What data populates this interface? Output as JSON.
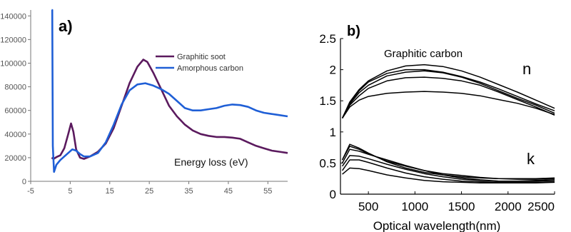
{
  "figure": {
    "panel_a_label": "a)",
    "panel_b_label": "b)"
  },
  "chart_data": [
    {
      "type": "line",
      "panel": "a)",
      "xlabel_annotation": "Energy loss (eV)",
      "legend_position": "top-right",
      "xlim": [
        -5,
        60
      ],
      "ylim": [
        0,
        145000
      ],
      "xticks": [
        -5,
        5,
        15,
        25,
        35,
        45,
        55
      ],
      "yticks": [
        0,
        20000,
        40000,
        60000,
        80000,
        100000,
        120000,
        140000
      ],
      "xtick_labels": [
        "-5",
        "5",
        "15",
        "25",
        "35",
        "45",
        "55"
      ],
      "ytick_labels": [
        "0",
        "20000",
        "40000",
        "60000",
        "80000",
        "100000",
        "120000",
        "140000"
      ],
      "series": [
        {
          "name": "Graphitic soot",
          "color": "#5b1a5e",
          "x": [
            0.3,
            0.8,
            1.5,
            2.5,
            3.5,
            4.5,
            5.2,
            5.8,
            6.5,
            7.5,
            8.5,
            10,
            12,
            14,
            16,
            18,
            20,
            22,
            23.5,
            24.5,
            26,
            28,
            30,
            32,
            34,
            36,
            38,
            40,
            42,
            44,
            46,
            48,
            50,
            52,
            54,
            56,
            58,
            60
          ],
          "y": [
            20000,
            19000,
            20500,
            22000,
            28000,
            40000,
            49000,
            42000,
            27000,
            20000,
            19000,
            21000,
            25000,
            32000,
            45000,
            64000,
            83000,
            97000,
            103000,
            101000,
            92000,
            78000,
            64000,
            55000,
            48000,
            43000,
            40000,
            38500,
            37500,
            37500,
            37000,
            36000,
            33000,
            30000,
            28000,
            26000,
            25000,
            24000
          ]
        },
        {
          "name": "Amorphous carbon",
          "color": "#1f5fd6",
          "x": [
            0.3,
            0.45,
            0.6,
            0.9,
            1.5,
            2.5,
            3.5,
            4.5,
            5.5,
            6.5,
            7.5,
            8.5,
            10,
            12,
            14,
            16,
            18,
            20,
            22,
            24,
            26,
            28,
            30,
            32,
            34,
            36,
            38,
            40,
            42,
            44,
            46,
            48,
            50,
            52,
            54,
            56,
            58,
            60
          ],
          "y": [
            145000,
            145000,
            30000,
            8000,
            14000,
            18000,
            21000,
            24000,
            27000,
            26000,
            23000,
            21000,
            21000,
            24000,
            33000,
            48000,
            65000,
            77000,
            82000,
            83000,
            81000,
            78000,
            74000,
            68000,
            62000,
            60000,
            60000,
            61000,
            62000,
            64000,
            65000,
            64500,
            63000,
            60000,
            58000,
            57000,
            56000,
            55000
          ]
        }
      ]
    },
    {
      "type": "line",
      "panel": "b)",
      "title": "Graphitic carbon",
      "xlabel": "Optical wavelength(nm)",
      "xlim": [
        200,
        2500
      ],
      "ylim": [
        0,
        2.5
      ],
      "xticks": [
        500,
        1000,
        1500,
        2000,
        2500
      ],
      "yticks": [
        0,
        0.5,
        1,
        1.5,
        2,
        2.5
      ],
      "xtick_labels": [
        "500",
        "1000",
        "1500",
        "2000",
        "2500"
      ],
      "ytick_labels": [
        "0",
        "0.5",
        "1",
        "1.5",
        "2",
        "2.5"
      ],
      "annotations": [
        "n",
        "k"
      ],
      "x": [
        220,
        300,
        400,
        500,
        700,
        900,
        1100,
        1300,
        1500,
        1700,
        1900,
        2100,
        2300,
        2500
      ],
      "series": [
        {
          "color": "#000000",
          "values": [
            1.22,
            1.48,
            1.68,
            1.82,
            1.98,
            2.06,
            2.08,
            2.05,
            1.98,
            1.88,
            1.76,
            1.64,
            1.51,
            1.38
          ]
        },
        {
          "color": "#000000",
          "values": [
            1.22,
            1.47,
            1.66,
            1.8,
            1.94,
            2.0,
            2.0,
            1.96,
            1.89,
            1.8,
            1.69,
            1.57,
            1.45,
            1.34
          ]
        },
        {
          "color": "#000000",
          "values": [
            1.22,
            1.45,
            1.63,
            1.75,
            1.9,
            1.96,
            1.98,
            1.95,
            1.88,
            1.78,
            1.66,
            1.54,
            1.43,
            1.3
          ]
        },
        {
          "color": "#000000",
          "values": [
            1.22,
            1.43,
            1.58,
            1.7,
            1.82,
            1.87,
            1.88,
            1.86,
            1.82,
            1.75,
            1.64,
            1.52,
            1.4,
            1.27
          ]
        },
        {
          "color": "#000000",
          "values": [
            1.22,
            1.4,
            1.51,
            1.57,
            1.62,
            1.64,
            1.65,
            1.64,
            1.62,
            1.58,
            1.52,
            1.46,
            1.38,
            1.28
          ]
        },
        {
          "color": "#000000",
          "values": [
            0.55,
            0.8,
            0.74,
            0.66,
            0.52,
            0.42,
            0.35,
            0.31,
            0.28,
            0.26,
            0.25,
            0.25,
            0.25,
            0.26
          ]
        },
        {
          "color": "#000000",
          "values": [
            0.55,
            0.77,
            0.72,
            0.65,
            0.53,
            0.45,
            0.38,
            0.33,
            0.3,
            0.27,
            0.25,
            0.24,
            0.24,
            0.25
          ]
        },
        {
          "color": "#000000",
          "values": [
            0.5,
            0.72,
            0.69,
            0.64,
            0.55,
            0.46,
            0.38,
            0.31,
            0.26,
            0.23,
            0.21,
            0.21,
            0.22,
            0.23
          ]
        },
        {
          "color": "#000000",
          "values": [
            0.45,
            0.62,
            0.61,
            0.57,
            0.48,
            0.4,
            0.33,
            0.28,
            0.24,
            0.22,
            0.21,
            0.21,
            0.21,
            0.22
          ]
        },
        {
          "color": "#000000",
          "values": [
            0.38,
            0.55,
            0.55,
            0.51,
            0.42,
            0.34,
            0.28,
            0.24,
            0.21,
            0.2,
            0.19,
            0.19,
            0.19,
            0.2
          ]
        },
        {
          "color": "#000000",
          "values": [
            0.32,
            0.42,
            0.41,
            0.38,
            0.31,
            0.26,
            0.22,
            0.2,
            0.19,
            0.18,
            0.18,
            0.18,
            0.18,
            0.19
          ]
        }
      ]
    }
  ]
}
